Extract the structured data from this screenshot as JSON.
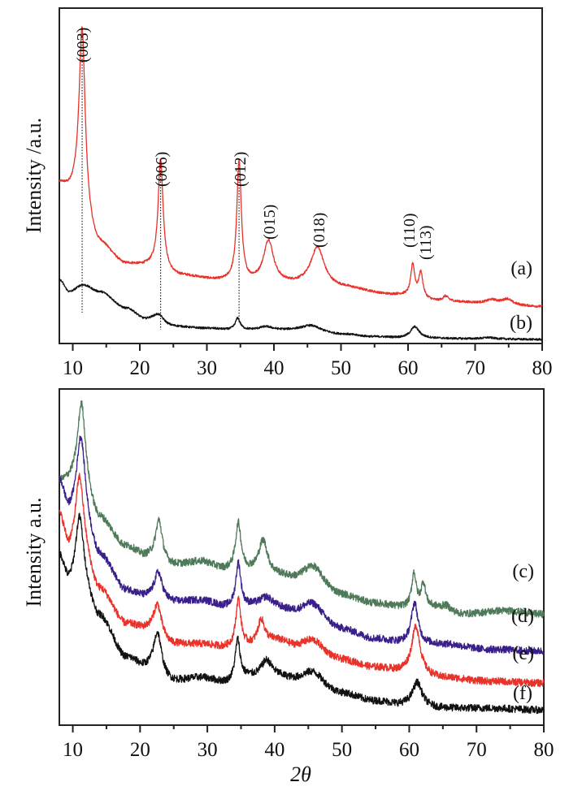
{
  "chart_data": [
    {
      "type": "line",
      "panel": "top",
      "title": "",
      "xlabel": "",
      "ylabel": "Intensity /a.u.",
      "xlim": [
        8,
        80
      ],
      "ylim": [
        0,
        100
      ],
      "x_ticks": [
        10,
        20,
        30,
        40,
        50,
        60,
        70,
        80
      ],
      "x_tick_labels": [
        "10",
        "20",
        "30",
        "40",
        "50",
        "60",
        "70",
        "80"
      ],
      "x_minor_ticks": [
        15,
        25,
        35,
        45,
        55,
        65,
        75
      ],
      "grid": false,
      "reference_lines_2theta": [
        11.4,
        23.1,
        34.8
      ],
      "peak_labels": [
        {
          "text": "(003)",
          "x": 11.4
        },
        {
          "text": "(006)",
          "x": 23.1
        },
        {
          "text": "(012)",
          "x": 34.8
        },
        {
          "text": "(015)",
          "x": 39.2
        },
        {
          "text": "(018)",
          "x": 46.5
        },
        {
          "text": "(110)",
          "x": 60.7
        },
        {
          "text": "(113)",
          "x": 61.9
        }
      ],
      "series": [
        {
          "name": "(a)",
          "label": "(a)",
          "color": "#e8322a",
          "noise": 0.35,
          "baseline": [
            [
              8,
              47
            ],
            [
              10,
              44.5
            ],
            [
              14,
              29
            ],
            [
              18,
              23.5
            ],
            [
              21,
              23
            ],
            [
              26,
              20
            ],
            [
              33,
              18.5
            ],
            [
              37,
              18
            ],
            [
              44,
              17.5
            ],
            [
              50,
              16.5
            ],
            [
              58,
              14.5
            ],
            [
              65,
              12.5
            ],
            [
              72,
              12
            ],
            [
              80,
              11
            ]
          ],
          "peaks": [
            {
              "x": 11.4,
              "h": 54,
              "w": 0.55
            },
            {
              "x": 23.1,
              "h": 33,
              "w": 0.45
            },
            {
              "x": 34.8,
              "h": 36,
              "w": 0.4
            },
            {
              "x": 39.2,
              "h": 12.5,
              "w": 0.9
            },
            {
              "x": 46.5,
              "h": 11.5,
              "w": 1.2
            },
            {
              "x": 60.7,
              "h": 9.5,
              "w": 0.35
            },
            {
              "x": 61.9,
              "h": 7.5,
              "w": 0.38
            },
            {
              "x": 65.6,
              "h": 1.5,
              "w": 0.5
            },
            {
              "x": 72.5,
              "h": 1.0,
              "w": 1.0
            },
            {
              "x": 74.8,
              "h": 1.5,
              "w": 0.8
            }
          ]
        },
        {
          "name": "(b)",
          "label": "(b)",
          "color": "#111111",
          "noise": 0.3,
          "baseline": [
            [
              8,
              19
            ],
            [
              9.5,
              15.5
            ],
            [
              11.5,
              17.5
            ],
            [
              14,
              15.5
            ],
            [
              18,
              10.5
            ],
            [
              21,
              7
            ],
            [
              25,
              5
            ],
            [
              30,
              4.5
            ],
            [
              34,
              4
            ],
            [
              37,
              4
            ],
            [
              40,
              4
            ],
            [
              45,
              4.2
            ],
            [
              50,
              2.8
            ],
            [
              55,
              2
            ],
            [
              60,
              1.6
            ],
            [
              70,
              1.4
            ],
            [
              80,
              1.2
            ]
          ],
          "peaks": [
            {
              "x": 22.8,
              "h": 2.6,
              "w": 1.0
            },
            {
              "x": 34.6,
              "h": 3.5,
              "w": 0.45
            },
            {
              "x": 38.8,
              "h": 1.0,
              "w": 1.2
            },
            {
              "x": 45.5,
              "h": 1.2,
              "w": 1.5
            },
            {
              "x": 61.0,
              "h": 3.4,
              "w": 0.8
            },
            {
              "x": 72,
              "h": 0.4,
              "w": 1.0
            }
          ]
        }
      ]
    },
    {
      "type": "line",
      "panel": "bottom",
      "title": "",
      "xlabel": "2θ",
      "ylabel": "Intensity a.u.",
      "xlim": [
        8,
        80
      ],
      "ylim": [
        0,
        100
      ],
      "x_ticks": [
        10,
        20,
        30,
        40,
        50,
        60,
        70,
        80
      ],
      "x_tick_labels": [
        "10",
        "20",
        "30",
        "40",
        "50",
        "60",
        "70",
        "80"
      ],
      "x_minor_ticks": [
        15,
        25,
        35,
        45,
        55,
        65,
        75
      ],
      "grid": false,
      "series": [
        {
          "name": "(c)",
          "label": "(c)",
          "color": "#4f7a5a",
          "noise": 1.1,
          "baseline": [
            [
              8,
              72
            ],
            [
              11,
              73
            ],
            [
              14,
              61
            ],
            [
              18,
              53
            ],
            [
              21,
              50
            ],
            [
              25,
              47.5
            ],
            [
              29,
              48.5
            ],
            [
              33,
              46
            ],
            [
              36,
              45.5
            ],
            [
              40,
              44
            ],
            [
              44,
              42
            ],
            [
              50,
              38
            ],
            [
              55,
              36
            ],
            [
              59,
              35
            ],
            [
              63,
              35
            ],
            [
              68,
              33
            ],
            [
              74,
              34
            ],
            [
              80,
              33
            ]
          ],
          "peaks": [
            {
              "x": 11.3,
              "h": 23,
              "w": 0.7
            },
            {
              "x": 22.8,
              "h": 12,
              "w": 0.6
            },
            {
              "x": 34.6,
              "h": 14,
              "w": 0.5
            },
            {
              "x": 38.3,
              "h": 10,
              "w": 0.8
            },
            {
              "x": 45.8,
              "h": 6,
              "w": 2.0
            },
            {
              "x": 60.7,
              "h": 10,
              "w": 0.4
            },
            {
              "x": 62.1,
              "h": 7,
              "w": 0.4
            },
            {
              "x": 65.5,
              "h": 1.5,
              "w": 0.8
            }
          ]
        },
        {
          "name": "(d)",
          "label": "(d)",
          "color": "#3a1f8a",
          "noise": 1.1,
          "baseline": [
            [
              8,
              72
            ],
            [
              9.5,
              63
            ],
            [
              11,
              64
            ],
            [
              14,
              50
            ],
            [
              18,
              40
            ],
            [
              21,
              38
            ],
            [
              25,
              36.5
            ],
            [
              29,
              37
            ],
            [
              33,
              35
            ],
            [
              36,
              35
            ],
            [
              40,
              34
            ],
            [
              44,
              32.5
            ],
            [
              50,
              28
            ],
            [
              55,
              25.5
            ],
            [
              59,
              24.5
            ],
            [
              65,
              24
            ],
            [
              72,
              22.5
            ],
            [
              80,
              22
            ]
          ],
          "peaks": [
            {
              "x": 11.2,
              "h": 22,
              "w": 0.75
            },
            {
              "x": 22.7,
              "h": 8,
              "w": 0.7
            },
            {
              "x": 34.6,
              "h": 13,
              "w": 0.45
            },
            {
              "x": 38.8,
              "h": 3.5,
              "w": 1.3
            },
            {
              "x": 45.8,
              "h": 4.5,
              "w": 2.0
            },
            {
              "x": 60.8,
              "h": 12,
              "w": 0.6
            }
          ]
        },
        {
          "name": "(e)",
          "label": "(e)",
          "color": "#e8322a",
          "noise": 1.1,
          "baseline": [
            [
              8,
              62
            ],
            [
              9.5,
              52
            ],
            [
              11,
              54
            ],
            [
              14,
              40
            ],
            [
              18,
              30
            ],
            [
              21,
              28.5
            ],
            [
              25,
              24
            ],
            [
              29,
              24
            ],
            [
              33,
              23
            ],
            [
              36,
              23.5
            ],
            [
              40,
              25
            ],
            [
              44,
              22.5
            ],
            [
              50,
              19
            ],
            [
              55,
              17
            ],
            [
              59,
              16
            ],
            [
              65,
              14
            ],
            [
              72,
              13
            ],
            [
              80,
              12.5
            ]
          ],
          "peaks": [
            {
              "x": 11.0,
              "h": 20,
              "w": 0.7
            },
            {
              "x": 22.6,
              "h": 9,
              "w": 0.7
            },
            {
              "x": 34.6,
              "h": 14,
              "w": 0.45
            },
            {
              "x": 38.0,
              "h": 7,
              "w": 0.6
            },
            {
              "x": 45.8,
              "h": 3.5,
              "w": 2.0
            },
            {
              "x": 61.0,
              "h": 14,
              "w": 0.75
            }
          ]
        },
        {
          "name": "(f)",
          "label": "(f)",
          "color": "#111111",
          "noise": 1.1,
          "baseline": [
            [
              8,
              50
            ],
            [
              9.5,
              42
            ],
            [
              11,
              44
            ],
            [
              14,
              32
            ],
            [
              18,
              20
            ],
            [
              21,
              17
            ],
            [
              25,
              13
            ],
            [
              29,
              14
            ],
            [
              33,
              12.5
            ],
            [
              36,
              14
            ],
            [
              40,
              14
            ],
            [
              44,
              12.5
            ],
            [
              50,
              9
            ],
            [
              55,
              7
            ],
            [
              59,
              6
            ],
            [
              65,
              5
            ],
            [
              72,
              5
            ],
            [
              80,
              4.5
            ]
          ],
          "peaks": [
            {
              "x": 11.0,
              "h": 18,
              "w": 0.7
            },
            {
              "x": 22.6,
              "h": 12,
              "w": 0.7
            },
            {
              "x": 34.5,
              "h": 12,
              "w": 0.45
            },
            {
              "x": 38.8,
              "h": 5,
              "w": 1.0
            },
            {
              "x": 45.8,
              "h": 4,
              "w": 2.0
            },
            {
              "x": 61.2,
              "h": 7,
              "w": 0.85
            }
          ]
        }
      ]
    }
  ]
}
